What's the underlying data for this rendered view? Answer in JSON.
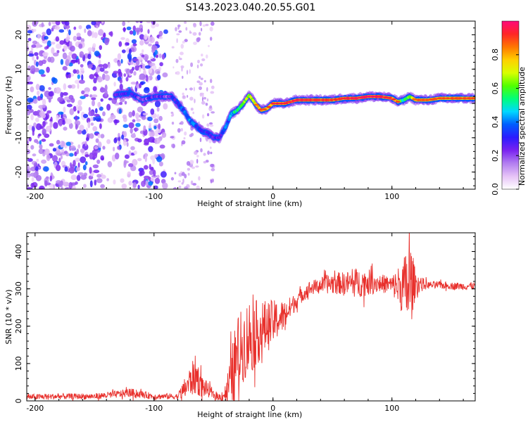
{
  "title": "S143.2023.040.20.55.G01",
  "chart_data": [
    {
      "type": "heatmap",
      "name": "spectrogram",
      "xlabel": "Height of straight line (km)",
      "ylabel": "Frequency (Hz)",
      "xlim": [
        -207,
        170
      ],
      "ylim": [
        -25,
        24
      ],
      "xticks": [
        -200,
        -100,
        0,
        100
      ],
      "yticks": [
        -20,
        -10,
        0,
        10,
        20
      ],
      "ridge": {
        "x": [
          -133,
          -120,
          -110,
          -100,
          -90,
          -85,
          -80,
          -75,
          -70,
          -65,
          -60,
          -55,
          -50,
          -45,
          -40,
          -35,
          -30,
          -25,
          -20,
          -15,
          -10,
          -5,
          0,
          10,
          20,
          30,
          40,
          50,
          60,
          70,
          80,
          90,
          100,
          105,
          110,
          115,
          120,
          130,
          140,
          150,
          160,
          170
        ],
        "y": [
          2.5,
          3,
          1,
          2,
          2,
          2,
          0,
          -2,
          -5,
          -6.5,
          -8,
          -8.5,
          -10,
          -10,
          -7,
          -3,
          -2,
          0,
          2.5,
          0,
          -2,
          -1.5,
          0,
          0,
          1,
          1,
          1,
          1,
          1.5,
          1.5,
          2,
          2,
          1.5,
          0.5,
          1,
          2,
          1,
          1,
          1.5,
          1.5,
          1.5,
          1.5
        ],
        "amplitude": [
          0.35,
          0.4,
          0.3,
          0.35,
          0.3,
          0.35,
          0.4,
          0.45,
          0.5,
          0.45,
          0.4,
          0.4,
          0.35,
          0.3,
          0.45,
          0.5,
          0.6,
          0.7,
          0.75,
          0.8,
          0.85,
          0.85,
          0.9,
          0.9,
          0.92,
          0.9,
          0.9,
          0.88,
          0.9,
          0.92,
          0.95,
          0.92,
          0.9,
          0.85,
          0.6,
          0.7,
          0.85,
          0.85,
          0.85,
          0.85,
          0.85,
          0.85
        ]
      },
      "noise_region_x": [
        -207,
        -90
      ],
      "noise_amplitude": [
        0.05,
        0.25
      ]
    },
    {
      "type": "line",
      "name": "snr",
      "xlabel": "Height of straight line (km)",
      "ylabel": "SNR (10 * v/v)",
      "xlim": [
        -207,
        170
      ],
      "ylim": [
        0,
        450
      ],
      "xticks": [
        -200,
        -100,
        0,
        100
      ],
      "yticks": [
        0,
        100,
        200,
        300,
        400
      ],
      "series": [
        {
          "name": "SNR",
          "color": "#e8302c",
          "x": [
            -207,
            -180,
            -150,
            -130,
            -120,
            -100,
            -80,
            -75,
            -70,
            -65,
            -60,
            -55,
            -50,
            -45,
            -40,
            -35,
            -30,
            -25,
            -20,
            -15,
            -10,
            -5,
            0,
            10,
            20,
            30,
            40,
            50,
            60,
            70,
            80,
            90,
            100,
            110,
            115,
            120,
            130,
            140,
            150,
            160,
            170
          ],
          "y": [
            10,
            12,
            12,
            18,
            22,
            12,
            12,
            30,
            50,
            70,
            40,
            30,
            15,
            10,
            20,
            60,
            120,
            150,
            170,
            180,
            190,
            200,
            210,
            230,
            270,
            300,
            310,
            315,
            315,
            315,
            318,
            315,
            310,
            305,
            310,
            315,
            310,
            310,
            308,
            307,
            308
          ],
          "noise_amplitude": [
            8,
            8,
            8,
            10,
            12,
            8,
            8,
            25,
            40,
            55,
            30,
            20,
            10,
            10,
            25,
            80,
            110,
            100,
            110,
            90,
            80,
            70,
            60,
            40,
            20,
            20,
            20,
            30,
            30,
            40,
            35,
            25,
            25,
            80,
            130,
            30,
            10,
            10,
            10,
            10,
            10
          ]
        }
      ]
    },
    {
      "type": "colorbar",
      "name": "colorbar",
      "label": "Normalized spectral amplitude",
      "range": [
        0,
        1
      ],
      "ticks": [
        0.0,
        0.2,
        0.4,
        0.6,
        0.8
      ],
      "tick_labels": [
        "0.0",
        "0.2",
        "0.4",
        "0.6",
        "0.8"
      ],
      "colors": [
        "#ffffff",
        "#e6c3f7",
        "#b27ef0",
        "#7a22f0",
        "#2b1bff",
        "#005dff",
        "#00d8ff",
        "#00ff7a",
        "#51ff00",
        "#d8ff00",
        "#ffd000",
        "#ff7700",
        "#ff2626",
        "#ff0a7a"
      ]
    }
  ]
}
